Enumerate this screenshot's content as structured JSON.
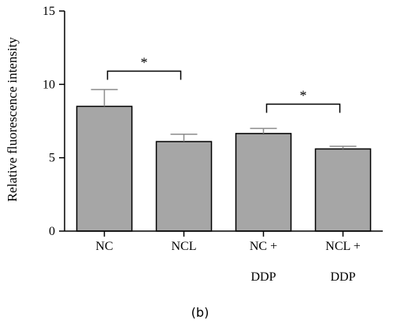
{
  "chart_data": {
    "type": "bar",
    "categories": [
      [
        "NC"
      ],
      [
        "NCL"
      ],
      [
        "NC +",
        "DDP"
      ],
      [
        "NCL +",
        "DDP"
      ]
    ],
    "values": [
      8.5,
      6.1,
      6.65,
      5.6
    ],
    "errors": [
      1.15,
      0.5,
      0.35,
      0.18
    ],
    "xlabel": "",
    "ylabel": "Relative fluorescence intensity",
    "ylim": [
      0,
      15
    ],
    "yticks": [
      0,
      5,
      10,
      15
    ],
    "grid": false,
    "bar_color": "#a6a6a6",
    "bar_edge_color": "#000000",
    "error_color": "#8c8c8c",
    "significance": [
      {
        "from": 0,
        "to": 1,
        "label": "*",
        "level": 10.9
      },
      {
        "from": 2,
        "to": 3,
        "label": "*",
        "level": 8.65
      }
    ],
    "panel_label": "(b)"
  }
}
